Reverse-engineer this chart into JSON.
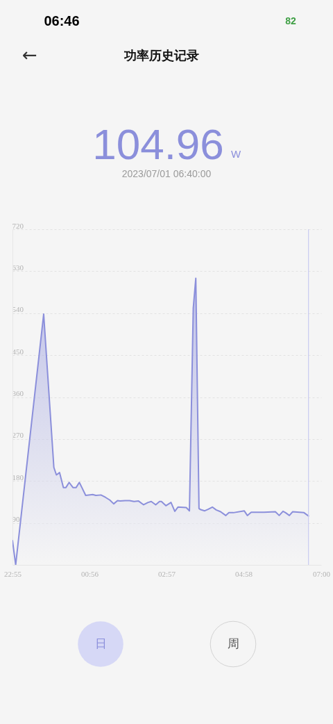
{
  "chart_data": {
    "type": "area",
    "title": "功率历史记录",
    "annotations": [
      "104.96",
      "W",
      "2023/07/01 06:40:00",
      "日",
      "周",
      "06:46",
      "82",
      "←"
    ],
    "x": [
      "2023-06-30T22:55",
      "2023-06-30T23:00",
      "2023-06-30T23:44",
      "2023-07-01T00:00",
      "2023-07-01T00:04",
      "2023-07-01T00:09",
      "2023-07-01T00:15",
      "2023-07-01T00:19",
      "2023-07-01T00:24",
      "2023-07-01T00:30",
      "2023-07-01T00:35",
      "2023-07-01T00:40",
      "2023-07-01T00:44",
      "2023-07-01T00:50",
      "2023-07-01T01:01",
      "2023-07-01T01:06",
      "2023-07-01T01:14",
      "2023-07-01T01:21",
      "2023-07-01T01:28",
      "2023-07-01T01:34",
      "2023-07-01T01:40",
      "2023-07-01T01:44",
      "2023-07-01T01:52",
      "2023-07-01T01:59",
      "2023-07-01T02:06",
      "2023-07-01T02:13",
      "2023-07-01T02:21",
      "2023-07-01T02:28",
      "2023-07-01T02:33",
      "2023-07-01T02:40",
      "2023-07-01T02:46",
      "2023-07-01T02:49",
      "2023-07-01T02:56",
      "2023-07-01T03:04",
      "2023-07-01T03:10",
      "2023-07-01T03:15",
      "2023-07-01T03:28",
      "2023-07-01T03:33",
      "2023-07-01T03:39",
      "2023-07-01T03:43",
      "2023-07-01T03:48",
      "2023-07-01T03:50",
      "2023-07-01T03:57",
      "2023-07-01T04:02",
      "2023-07-01T04:09",
      "2023-07-01T04:15",
      "2023-07-01T04:22",
      "2023-07-01T04:30",
      "2023-07-01T04:35",
      "2023-07-01T04:42",
      "2023-07-01T04:59",
      "2023-07-01T05:04",
      "2023-07-01T05:10",
      "2023-07-01T05:30",
      "2023-07-01T05:48",
      "2023-07-01T05:54",
      "2023-07-01T06:00",
      "2023-07-01T06:04",
      "2023-07-01T06:10",
      "2023-07-01T06:15",
      "2023-07-01T06:33",
      "2023-07-01T06:40"
    ],
    "series": [
      {
        "color": "#8b8fdb",
        "values": [
          52,
          0,
          538,
          209,
          193,
          198,
          166,
          166,
          177,
          166,
          166,
          177,
          166,
          149,
          151,
          149,
          150,
          145,
          139,
          131,
          138,
          137,
          138,
          138,
          136,
          137,
          129,
          134,
          136,
          129,
          136,
          136,
          127,
          134,
          115,
          124,
          123,
          116,
          551,
          615,
          121,
          119,
          116,
          119,
          124,
          118,
          114,
          106,
          112,
          112,
          116,
          106,
          113,
          113,
          114,
          106,
          115,
          112,
          106,
          114,
          112,
          104.96
        ]
      }
    ],
    "xlim": [
      "2023-06-30T22:55",
      "2023-07-01T07:00"
    ],
    "xticks": [
      {
        "value": "2023-06-30T22:55",
        "label": "22:55"
      },
      {
        "value": "2023-07-01T00:56",
        "label": "00:56"
      },
      {
        "value": "2023-07-01T02:57",
        "label": "02:57"
      },
      {
        "value": "2023-07-01T04:58",
        "label": "04:58"
      },
      {
        "value": "2023-07-01T07:00",
        "label": "07:00"
      }
    ],
    "ylim": [
      0,
      720
    ],
    "yticks": [
      90,
      180,
      270,
      360,
      450,
      540,
      630,
      720
    ],
    "grid": "y",
    "ref_lines": [
      {
        "axis": "x",
        "value": "2023-07-01T06:40",
        "color": "#c9cbf1"
      }
    ]
  }
}
